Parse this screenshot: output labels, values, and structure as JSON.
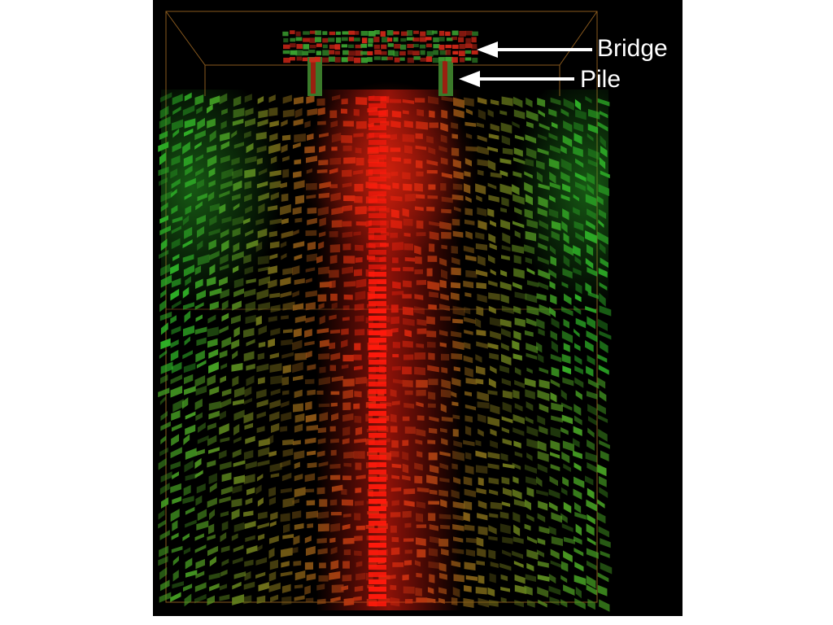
{
  "labels": {
    "bridge": "Bridge",
    "pile": "Pile"
  },
  "colors": {
    "background": "#000000",
    "page": "#ffffff",
    "field_red": "#ff2a1a",
    "field_green": "#3fd43a",
    "field_mixed": "#7a3a12",
    "outline": "#8a5a1e",
    "arrow": "#ffffff",
    "label_text": "#ffffff"
  }
}
